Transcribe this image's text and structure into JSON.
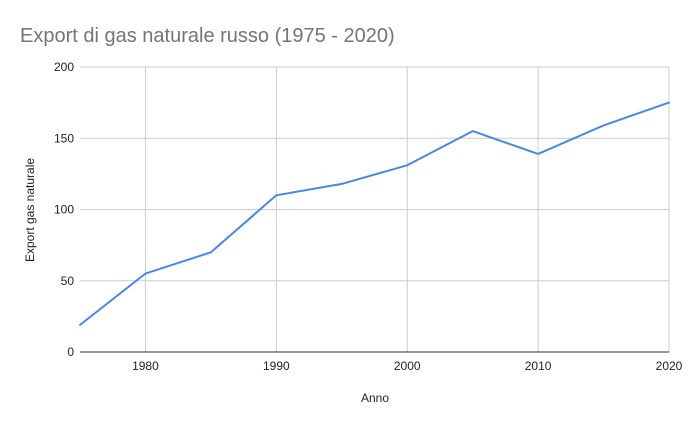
{
  "chart_data": {
    "type": "line",
    "title": "Export di gas naturale russo (1975 - 2020)",
    "xlabel": "Anno",
    "ylabel": "Export gas naturale",
    "xlim": [
      1975,
      2020
    ],
    "ylim": [
      0,
      200
    ],
    "x_ticks": [
      "1980",
      "1990",
      "2000",
      "2010",
      "2020"
    ],
    "y_ticks": [
      "0",
      "50",
      "100",
      "150",
      "200"
    ],
    "x_tick_values": [
      1980,
      1990,
      2000,
      2010,
      2020
    ],
    "y_tick_values": [
      0,
      50,
      100,
      150,
      200
    ],
    "grid": true,
    "legend": "none",
    "line_color": "#4a86e8",
    "series": [
      {
        "x": [
          1975,
          1980,
          1985,
          1990,
          1995,
          2000,
          2005,
          2010,
          2015,
          2020
        ],
        "values": [
          19,
          55,
          70,
          110,
          118,
          131,
          155,
          139,
          159,
          175
        ]
      }
    ]
  }
}
